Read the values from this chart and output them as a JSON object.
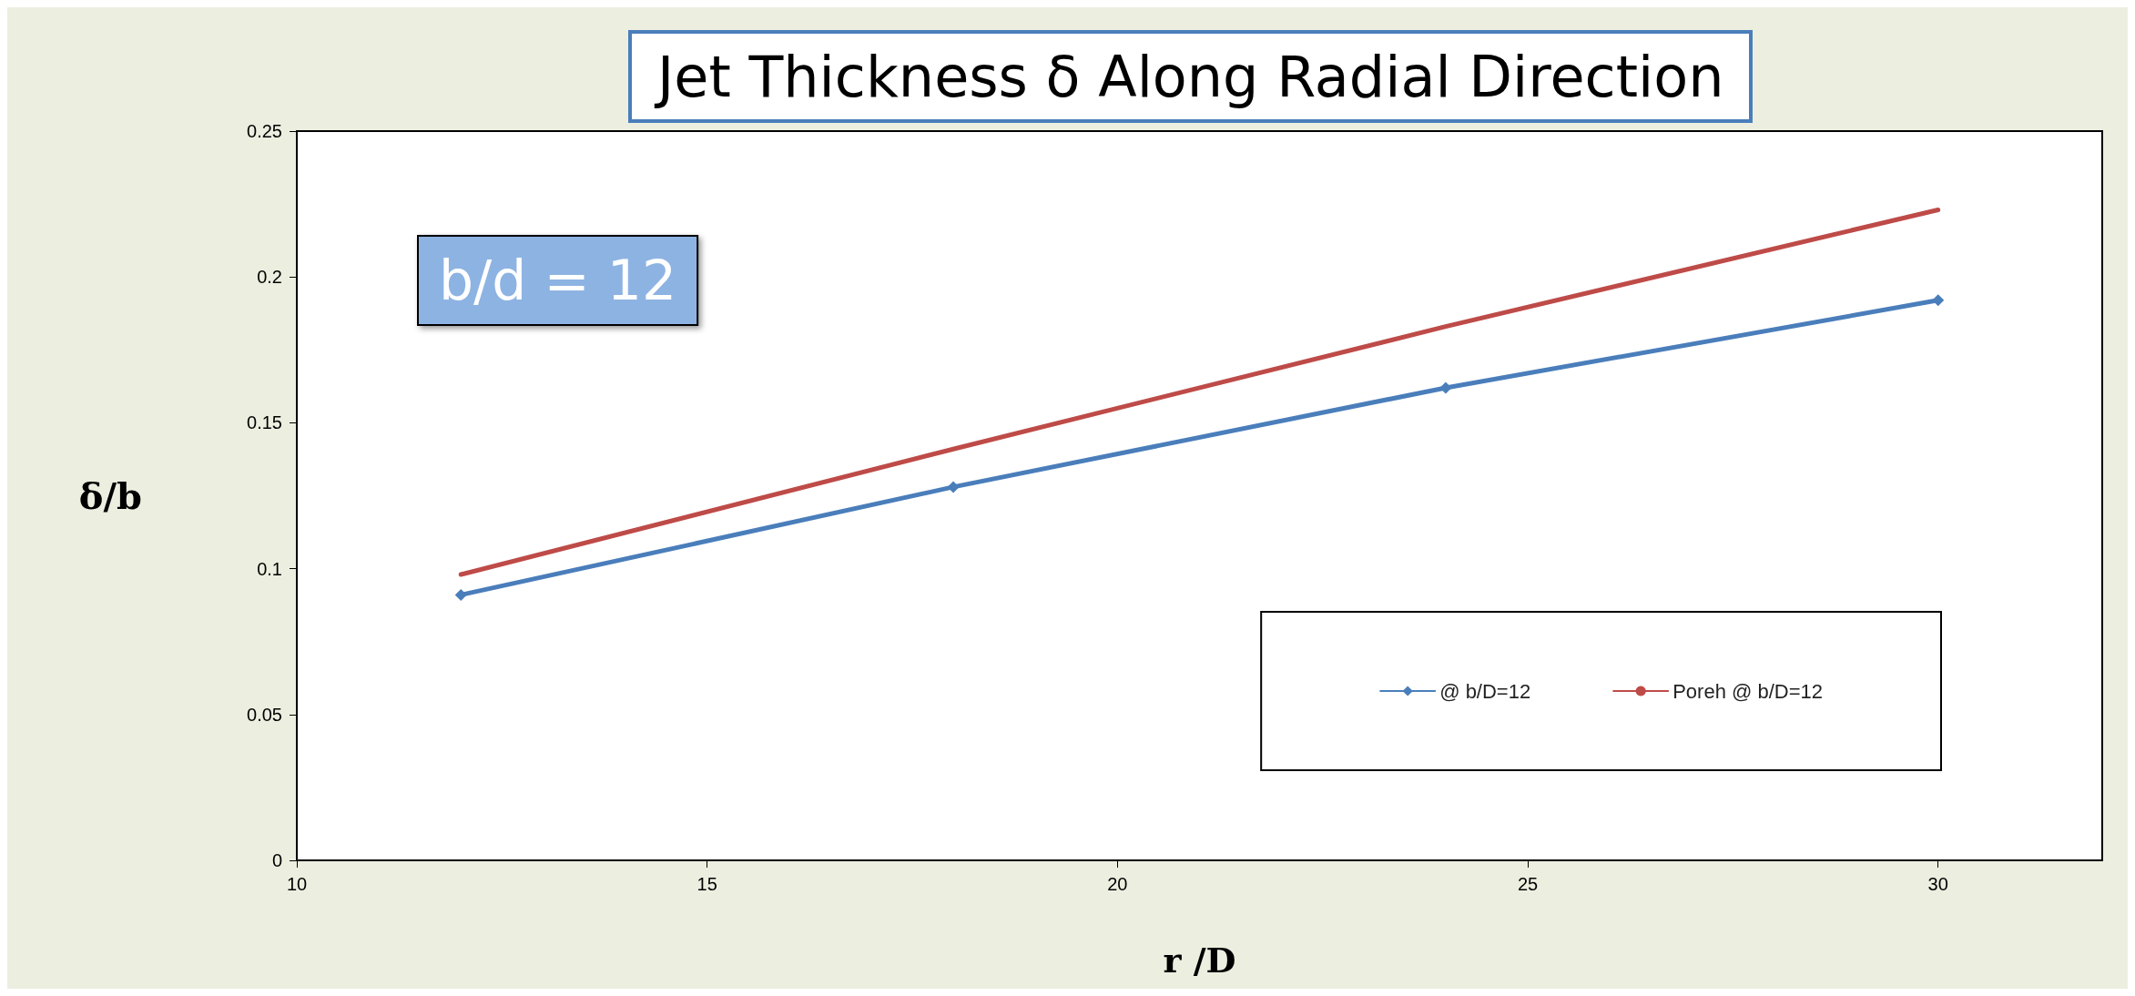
{
  "chart_data": {
    "type": "line",
    "title": "Jet Thickness δ Along Radial Direction",
    "xlabel": "r /D",
    "ylabel": "δ/b",
    "annotations": [
      "b/d = 12"
    ],
    "xlim": [
      10,
      32
    ],
    "xticks": [
      10,
      15,
      20,
      25,
      30
    ],
    "ylim": [
      0,
      0.25
    ],
    "yticks": [
      0,
      0.05,
      0.1,
      0.15,
      0.2,
      0.25
    ],
    "grid": false,
    "legend": "bottom right",
    "line_style": "solid",
    "series": [
      {
        "name": "@ b/D=12",
        "color": "#4a7ebb",
        "marker": "diamond",
        "x": [
          12,
          18,
          24,
          30
        ],
        "values": [
          0.091,
          0.128,
          0.162,
          0.192
        ]
      },
      {
        "name": "Poreh @ b/D=12",
        "color": "#be4b48",
        "marker": "none",
        "x": [
          12,
          18,
          24,
          30
        ],
        "values": [
          0.098,
          0.141,
          0.183,
          0.223
        ]
      }
    ]
  }
}
